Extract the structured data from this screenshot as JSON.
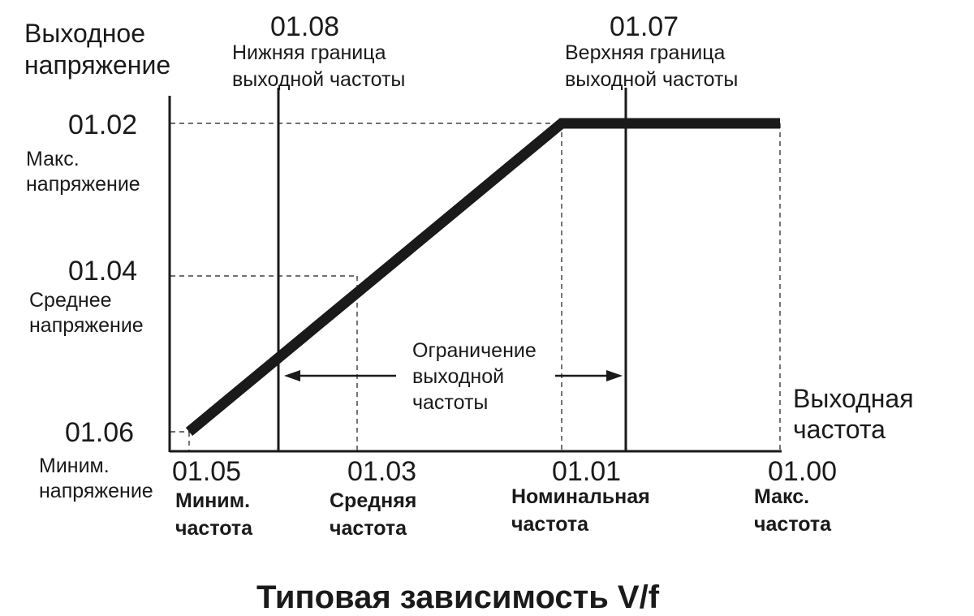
{
  "diagram": {
    "caption": "Типовая зависимость V/f",
    "y_axis_title": [
      "Выходное",
      "напряжение"
    ],
    "x_axis_title": [
      "Выходная",
      "частота"
    ],
    "voltage_params": [
      {
        "code": "01.02",
        "label": [
          "Макс.",
          "напряжение"
        ]
      },
      {
        "code": "01.04",
        "label": [
          "Среднее",
          "напряжение"
        ]
      },
      {
        "code": "01.06",
        "label": [
          "Миним.",
          "напряжение"
        ]
      }
    ],
    "frequency_params": [
      {
        "code": "01.05",
        "label": [
          "Миним.",
          "частота"
        ]
      },
      {
        "code": "01.03",
        "label": [
          "Средняя",
          "частота"
        ]
      },
      {
        "code": "01.01",
        "label": [
          "Номинальная",
          "частота"
        ]
      },
      {
        "code": "01.00",
        "label": [
          "Макс.",
          "частота"
        ]
      }
    ],
    "lower_limit": {
      "code": "01.08",
      "label": [
        "Нижняя граница",
        "выходной частоты"
      ]
    },
    "upper_limit": {
      "code": "01.07",
      "label": [
        "Верхняя граница",
        "выходной частоты"
      ]
    },
    "limit_range_label": [
      "Ограничение",
      "выходной",
      "частоты"
    ],
    "colors": {
      "ink": "#1a1a1a",
      "background": "#ffffff"
    }
  }
}
